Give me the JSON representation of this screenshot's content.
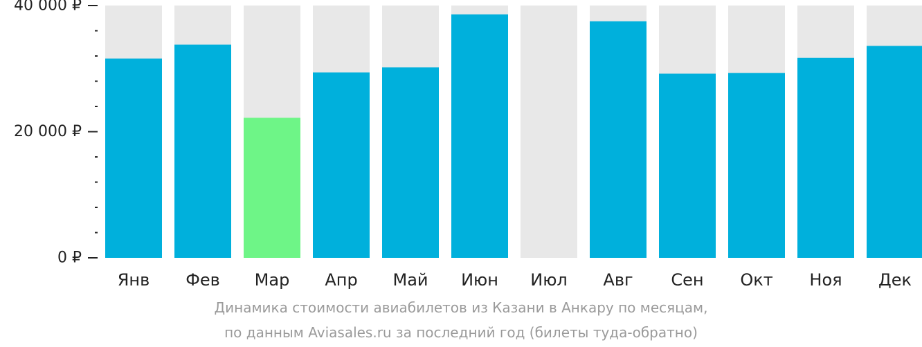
{
  "chart_data": {
    "type": "bar",
    "categories": [
      "Янв",
      "Фев",
      "Мар",
      "Апр",
      "Май",
      "Июн",
      "Июл",
      "Авг",
      "Сен",
      "Окт",
      "Ноя",
      "Дек"
    ],
    "values": [
      31600,
      33800,
      22200,
      29400,
      30200,
      38600,
      null,
      37500,
      29200,
      29300,
      31700,
      33600
    ],
    "highlight_index": 2,
    "ylim": [
      0,
      40000
    ],
    "yticks": [
      {
        "value": 0,
        "label": "0 ₽"
      },
      {
        "value": 20000,
        "label": "20 000 ₽"
      },
      {
        "value": 40000,
        "label": "40 000 ₽"
      }
    ],
    "minor_tick_step": 4000,
    "title": "",
    "xlabel": "",
    "ylabel": "",
    "grid": false,
    "colors": {
      "bar": "#00b0dc",
      "highlight": "#6ef587",
      "background_bar": "#e8e8e8",
      "axis": "#222222"
    }
  },
  "caption": {
    "line1": "Динамика стоимости авиабилетов из Казани в Анкару по месяцам,",
    "line2": "по данным Aviasales.ru за последний год (билеты туда-обратно)"
  }
}
